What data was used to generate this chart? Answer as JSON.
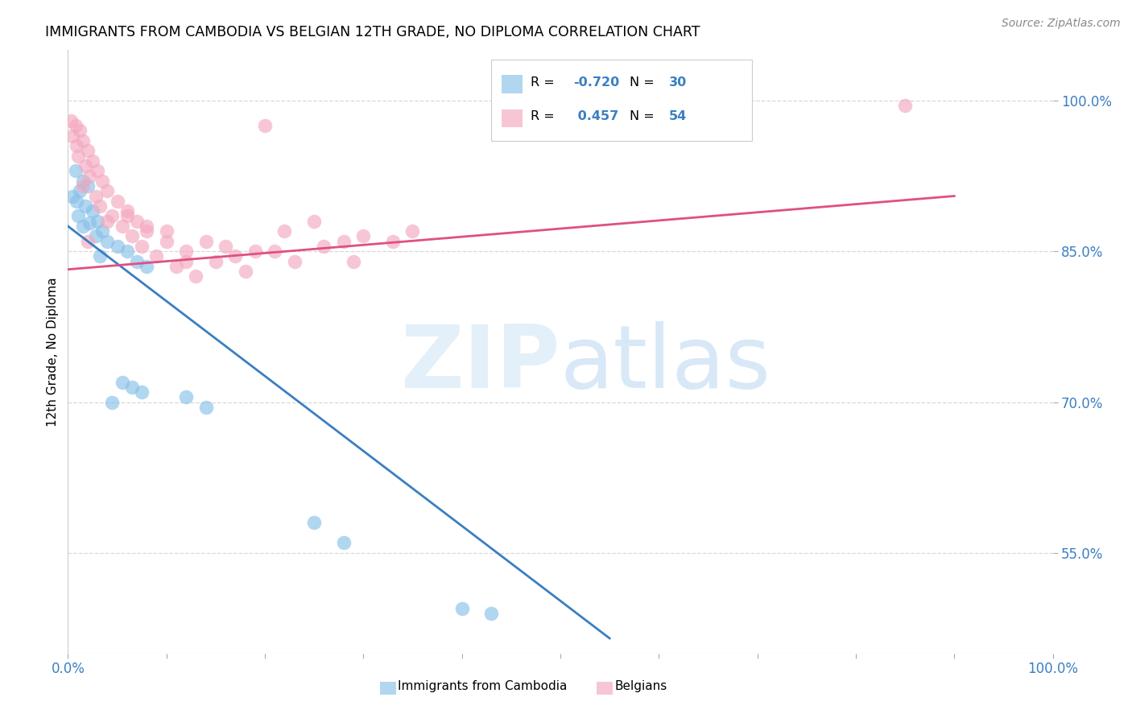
{
  "title": "IMMIGRANTS FROM CAMBODIA VS BELGIAN 12TH GRADE, NO DIPLOMA CORRELATION CHART",
  "source": "Source: ZipAtlas.com",
  "ylabel": "12th Grade, No Diploma",
  "right_yticks": [
    55.0,
    70.0,
    85.0,
    100.0
  ],
  "legend_entries": [
    {
      "label": "Immigrants from Cambodia",
      "R": -0.72,
      "N": 30,
      "color": "#88c0e8"
    },
    {
      "label": "Belgians",
      "R": 0.457,
      "N": 54,
      "color": "#f4a8bf"
    }
  ],
  "watermark_zip": "ZIP",
  "watermark_atlas": "atlas",
  "cambodia_scatter": [
    [
      0.8,
      93.0
    ],
    [
      1.5,
      92.0
    ],
    [
      2.0,
      91.5
    ],
    [
      1.2,
      91.0
    ],
    [
      0.5,
      90.5
    ],
    [
      0.9,
      90.0
    ],
    [
      1.8,
      89.5
    ],
    [
      2.5,
      89.0
    ],
    [
      1.0,
      88.5
    ],
    [
      3.0,
      88.0
    ],
    [
      2.2,
      87.8
    ],
    [
      1.5,
      87.5
    ],
    [
      3.5,
      87.0
    ],
    [
      2.8,
      86.5
    ],
    [
      4.0,
      86.0
    ],
    [
      5.0,
      85.5
    ],
    [
      6.0,
      85.0
    ],
    [
      3.2,
      84.5
    ],
    [
      7.0,
      84.0
    ],
    [
      8.0,
      83.5
    ],
    [
      5.5,
      72.0
    ],
    [
      6.5,
      71.5
    ],
    [
      7.5,
      71.0
    ],
    [
      4.5,
      70.0
    ],
    [
      12.0,
      70.5
    ],
    [
      14.0,
      69.5
    ],
    [
      25.0,
      58.0
    ],
    [
      28.0,
      56.0
    ],
    [
      40.0,
      49.5
    ],
    [
      43.0,
      49.0
    ]
  ],
  "belgian_scatter": [
    [
      0.3,
      98.0
    ],
    [
      0.8,
      97.5
    ],
    [
      1.2,
      97.0
    ],
    [
      0.5,
      96.5
    ],
    [
      1.5,
      96.0
    ],
    [
      0.9,
      95.5
    ],
    [
      2.0,
      95.0
    ],
    [
      1.0,
      94.5
    ],
    [
      2.5,
      94.0
    ],
    [
      1.8,
      93.5
    ],
    [
      3.0,
      93.0
    ],
    [
      2.2,
      92.5
    ],
    [
      3.5,
      92.0
    ],
    [
      1.5,
      91.5
    ],
    [
      4.0,
      91.0
    ],
    [
      2.8,
      90.5
    ],
    [
      5.0,
      90.0
    ],
    [
      3.2,
      89.5
    ],
    [
      6.0,
      89.0
    ],
    [
      4.5,
      88.5
    ],
    [
      7.0,
      88.0
    ],
    [
      5.5,
      87.5
    ],
    [
      8.0,
      87.0
    ],
    [
      6.5,
      86.5
    ],
    [
      10.0,
      86.0
    ],
    [
      7.5,
      85.5
    ],
    [
      12.0,
      85.0
    ],
    [
      9.0,
      84.5
    ],
    [
      15.0,
      84.0
    ],
    [
      11.0,
      83.5
    ],
    [
      18.0,
      83.0
    ],
    [
      13.0,
      82.5
    ],
    [
      20.0,
      97.5
    ],
    [
      4.0,
      88.0
    ],
    [
      6.0,
      88.5
    ],
    [
      8.0,
      87.5
    ],
    [
      22.0,
      87.0
    ],
    [
      25.0,
      88.0
    ],
    [
      14.0,
      86.0
    ],
    [
      10.0,
      87.0
    ],
    [
      2.0,
      86.0
    ],
    [
      16.0,
      85.5
    ],
    [
      19.0,
      85.0
    ],
    [
      12.0,
      84.0
    ],
    [
      28.0,
      86.0
    ],
    [
      17.0,
      84.5
    ],
    [
      30.0,
      86.5
    ],
    [
      21.0,
      85.0
    ],
    [
      35.0,
      87.0
    ],
    [
      26.0,
      85.5
    ],
    [
      33.0,
      86.0
    ],
    [
      29.0,
      84.0
    ],
    [
      85.0,
      99.5
    ],
    [
      23.0,
      84.0
    ]
  ],
  "blue_line": {
    "x0": 0,
    "y0": 87.5,
    "x1": 55.0,
    "y1": 46.5
  },
  "pink_line": {
    "x0": 0,
    "y0": 83.2,
    "x1": 90.0,
    "y1": 90.5
  },
  "xlim": [
    0.0,
    100.0
  ],
  "ylim": [
    45.0,
    105.0
  ],
  "background_color": "#ffffff",
  "grid_color": "#d8d8d8",
  "blue_color": "#88c0e8",
  "pink_color": "#f4a8bf",
  "blue_line_color": "#3a7fc1",
  "pink_line_color": "#e05080"
}
